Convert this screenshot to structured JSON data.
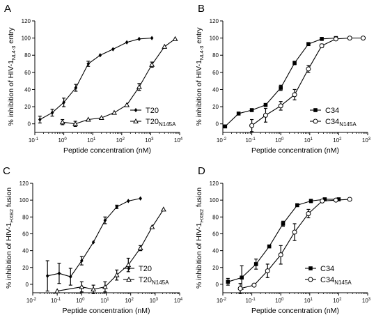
{
  "chart_data": [
    {
      "panel": "A",
      "type": "line",
      "x_scale": "log",
      "xlabel": "Peptide concentration (nM)",
      "ylabel": "% inhibition of HIV-1",
      "ylabel_subscript": "NL4-3",
      "ylabel_suffix": " entry",
      "xlim": [
        0.1,
        10000
      ],
      "ylim": [
        -10,
        120
      ],
      "x_ticks": [
        0.1,
        1,
        10,
        100,
        1000,
        10000
      ],
      "x_tick_labels": [
        [
          "10",
          "-1"
        ],
        [
          "10",
          "0"
        ],
        [
          "10",
          "1"
        ],
        [
          "10",
          "2"
        ],
        [
          "10",
          "3"
        ],
        [
          "10",
          "4"
        ]
      ],
      "y_ticks": [
        0,
        20,
        40,
        60,
        80,
        100,
        120
      ],
      "legend_position": "right",
      "series": [
        {
          "name": "T20",
          "name_subscript": "",
          "marker": "filled-diamond",
          "points": [
            {
              "x": 0.15,
              "y": 5,
              "err": 4
            },
            {
              "x": 0.4,
              "y": 13,
              "err": 4
            },
            {
              "x": 1.0,
              "y": 25,
              "err": 5
            },
            {
              "x": 2.6,
              "y": 42,
              "err": 4
            },
            {
              "x": 7.0,
              "y": 70,
              "err": 3
            },
            {
              "x": 18,
              "y": 80,
              "err": 0
            },
            {
              "x": 50,
              "y": 87,
              "err": 0
            },
            {
              "x": 150,
              "y": 95,
              "err": 0
            },
            {
              "x": 400,
              "y": 99,
              "err": 0
            },
            {
              "x": 1100,
              "y": 100,
              "err": 0
            }
          ]
        },
        {
          "name": "T20",
          "name_subscript": "N145A",
          "marker": "open-triangle",
          "points": [
            {
              "x": 0.9,
              "y": 2,
              "err": 3
            },
            {
              "x": 2.5,
              "y": 0,
              "err": 3
            },
            {
              "x": 7,
              "y": 5,
              "err": 0
            },
            {
              "x": 20,
              "y": 7,
              "err": 0
            },
            {
              "x": 55,
              "y": 13,
              "err": 0
            },
            {
              "x": 150,
              "y": 22,
              "err": 0
            },
            {
              "x": 400,
              "y": 43,
              "err": 4
            },
            {
              "x": 1100,
              "y": 69,
              "err": 3
            },
            {
              "x": 3000,
              "y": 90,
              "err": 0
            },
            {
              "x": 7000,
              "y": 99,
              "err": 0
            }
          ]
        }
      ]
    },
    {
      "panel": "B",
      "type": "line",
      "x_scale": "log",
      "xlabel": "Peptide concentration (nM)",
      "ylabel": "% inhibition of HIV-1",
      "ylabel_subscript": "NL4-3",
      "ylabel_suffix": " entry",
      "xlim": [
        0.01,
        1000
      ],
      "ylim": [
        -10,
        120
      ],
      "x_ticks": [
        0.01,
        0.1,
        1,
        10,
        100,
        1000
      ],
      "x_tick_labels": [
        [
          "10",
          "-2"
        ],
        [
          "10",
          "-1"
        ],
        [
          "10",
          "0"
        ],
        [
          "10",
          "1"
        ],
        [
          "10",
          "2"
        ],
        [
          "10",
          "3"
        ]
      ],
      "y_ticks": [
        0,
        20,
        40,
        60,
        80,
        100,
        120
      ],
      "legend_position": "right",
      "series": [
        {
          "name": "C34",
          "name_subscript": "",
          "marker": "filled-square",
          "points": [
            {
              "x": 0.012,
              "y": -3,
              "err": 0
            },
            {
              "x": 0.035,
              "y": 12,
              "err": 0
            },
            {
              "x": 0.1,
              "y": 16,
              "err": 0
            },
            {
              "x": 0.3,
              "y": 22,
              "err": 0
            },
            {
              "x": 1.0,
              "y": 42,
              "err": 3
            },
            {
              "x": 3.0,
              "y": 71,
              "err": 2
            },
            {
              "x": 9.0,
              "y": 93,
              "err": 0
            },
            {
              "x": 26,
              "y": 99,
              "err": 0
            },
            {
              "x": 80,
              "y": 100,
              "err": 0
            }
          ]
        },
        {
          "name": "C34",
          "name_subscript": "N145A",
          "marker": "open-circle",
          "points": [
            {
              "x": 0.1,
              "y": -2,
              "err": 7
            },
            {
              "x": 0.3,
              "y": 10,
              "err": 8
            },
            {
              "x": 1.0,
              "y": 21,
              "err": 5
            },
            {
              "x": 3.0,
              "y": 34,
              "err": 6
            },
            {
              "x": 9.0,
              "y": 64,
              "err": 4
            },
            {
              "x": 26,
              "y": 91,
              "err": 2
            },
            {
              "x": 80,
              "y": 99,
              "err": 0
            },
            {
              "x": 240,
              "y": 100,
              "err": 0
            },
            {
              "x": 700,
              "y": 100,
              "err": 0
            }
          ]
        }
      ]
    },
    {
      "panel": "C",
      "type": "line",
      "x_scale": "log",
      "xlabel": "Peptide concentration (nM)",
      "ylabel": "% inhibition of HIV-1",
      "ylabel_subscript": "HXB2",
      "ylabel_suffix": " fusion",
      "xlim": [
        0.01,
        10000
      ],
      "ylim": [
        -10,
        120
      ],
      "x_ticks": [
        0.01,
        0.1,
        1,
        10,
        100,
        1000,
        10000
      ],
      "x_tick_labels": [
        [
          "10",
          "-2"
        ],
        [
          "10",
          "-1"
        ],
        [
          "10",
          "0"
        ],
        [
          "10",
          "1"
        ],
        [
          "10",
          "2"
        ],
        [
          "10",
          "3"
        ],
        [
          "10",
          "4"
        ]
      ],
      "y_ticks": [
        0,
        20,
        40,
        60,
        80,
        100,
        120
      ],
      "legend_position": "bottom-right",
      "series": [
        {
          "name": "T20",
          "name_subscript": "",
          "marker": "filled-diamond",
          "points": [
            {
              "x": 0.04,
              "y": 10,
              "err": 18
            },
            {
              "x": 0.12,
              "y": 13,
              "err": 12
            },
            {
              "x": 0.35,
              "y": 9,
              "err": 10
            },
            {
              "x": 1.0,
              "y": 28,
              "err": 5
            },
            {
              "x": 3.0,
              "y": 50,
              "err": 0
            },
            {
              "x": 9.0,
              "y": 76,
              "err": 4
            },
            {
              "x": 27,
              "y": 92,
              "err": 2
            },
            {
              "x": 80,
              "y": 99,
              "err": 0
            },
            {
              "x": 250,
              "y": 102,
              "err": 0
            }
          ]
        },
        {
          "name": "T20",
          "name_subscript": "N145A",
          "marker": "open-triangle",
          "points": [
            {
              "x": 0.1,
              "y": -8,
              "err": 0
            },
            {
              "x": 1.0,
              "y": -3,
              "err": 6
            },
            {
              "x": 3.0,
              "y": -6,
              "err": 5
            },
            {
              "x": 9.0,
              "y": -3,
              "err": 6
            },
            {
              "x": 27,
              "y": 11,
              "err": 6
            },
            {
              "x": 80,
              "y": 23,
              "err": 8
            },
            {
              "x": 250,
              "y": 43,
              "err": 3
            },
            {
              "x": 750,
              "y": 68,
              "err": 0
            },
            {
              "x": 2200,
              "y": 89,
              "err": 0
            }
          ]
        }
      ]
    },
    {
      "panel": "D",
      "type": "line",
      "x_scale": "log",
      "xlabel": "Peptide concentration (nM)",
      "ylabel": "% inhibition of HIV-1",
      "ylabel_subscript": "HXB2",
      "ylabel_suffix": " fusion",
      "xlim": [
        0.01,
        1000
      ],
      "ylim": [
        -10,
        120
      ],
      "x_ticks": [
        0.01,
        0.1,
        1,
        10,
        100,
        1000
      ],
      "x_tick_labels": [
        [
          "10",
          "-2"
        ],
        [
          "10",
          "-1"
        ],
        [
          "10",
          "0"
        ],
        [
          "10",
          "1"
        ],
        [
          "10",
          "2"
        ],
        [
          "10",
          "3"
        ]
      ],
      "y_ticks": [
        0,
        20,
        40,
        60,
        80,
        100,
        120
      ],
      "legend_position": "bottom-right",
      "series": [
        {
          "name": "C34",
          "name_subscript": "",
          "marker": "filled-square",
          "points": [
            {
              "x": 0.015,
              "y": 3,
              "err": 4
            },
            {
              "x": 0.045,
              "y": 8,
              "err": 14
            },
            {
              "x": 0.14,
              "y": 24,
              "err": 6
            },
            {
              "x": 0.4,
              "y": 45,
              "err": 0
            },
            {
              "x": 1.2,
              "y": 72,
              "err": 3
            },
            {
              "x": 3.7,
              "y": 94,
              "err": 0
            },
            {
              "x": 11,
              "y": 99,
              "err": 2
            },
            {
              "x": 33,
              "y": 101,
              "err": 0
            },
            {
              "x": 100,
              "y": 101,
              "err": 0
            }
          ]
        },
        {
          "name": "C34",
          "name_subscript": "N145A",
          "marker": "open-circle",
          "points": [
            {
              "x": 0.04,
              "y": -5,
              "err": 6
            },
            {
              "x": 0.12,
              "y": -1,
              "err": 0
            },
            {
              "x": 0.35,
              "y": 16,
              "err": 8
            },
            {
              "x": 1.0,
              "y": 35,
              "err": 11
            },
            {
              "x": 3.0,
              "y": 62,
              "err": 10
            },
            {
              "x": 9.0,
              "y": 84,
              "err": 5
            },
            {
              "x": 27,
              "y": 99,
              "err": 0
            },
            {
              "x": 80,
              "y": 100,
              "err": 0
            },
            {
              "x": 240,
              "y": 101,
              "err": 0
            }
          ]
        }
      ]
    }
  ]
}
